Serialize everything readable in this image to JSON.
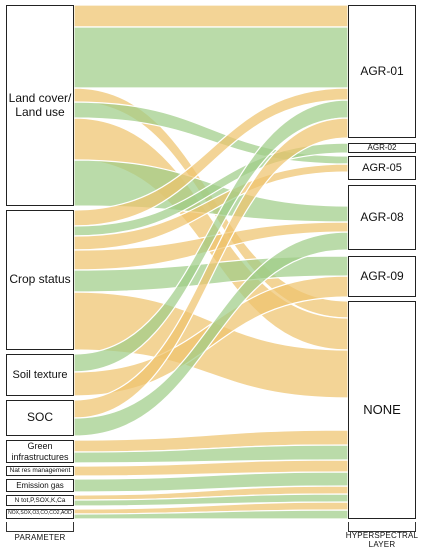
{
  "colors": {
    "yellow": "#efc46e",
    "green": "#9fcd88",
    "border": "#222222"
  },
  "parameters": [
    {
      "key": "land",
      "label": "Land cover/ Land use"
    },
    {
      "key": "crop",
      "label": "Crop status"
    },
    {
      "key": "soil",
      "label": "Soil texture"
    },
    {
      "key": "soc",
      "label": "SOC"
    },
    {
      "key": "green",
      "label": "Green infrastructures"
    },
    {
      "key": "natres",
      "label": "Nat res management"
    },
    {
      "key": "emission",
      "label": "Emission gas"
    },
    {
      "key": "ntot",
      "label": "N tot,P,SOX,K,Ca"
    },
    {
      "key": "nox",
      "label": "NOX,SOX,O3,CO,CO2,AOD"
    }
  ],
  "layers": [
    {
      "key": "agr01",
      "label": "AGR-01"
    },
    {
      "key": "agr02",
      "label": "AGR-02"
    },
    {
      "key": "agr05",
      "label": "AGR-05"
    },
    {
      "key": "agr08",
      "label": "AGR-08"
    },
    {
      "key": "agr09",
      "label": "AGR-09"
    },
    {
      "key": "none",
      "label": "NONE"
    }
  ],
  "axis": {
    "left": "PARAMETER",
    "right": "HYPERSPECTRAL LAYER"
  }
}
